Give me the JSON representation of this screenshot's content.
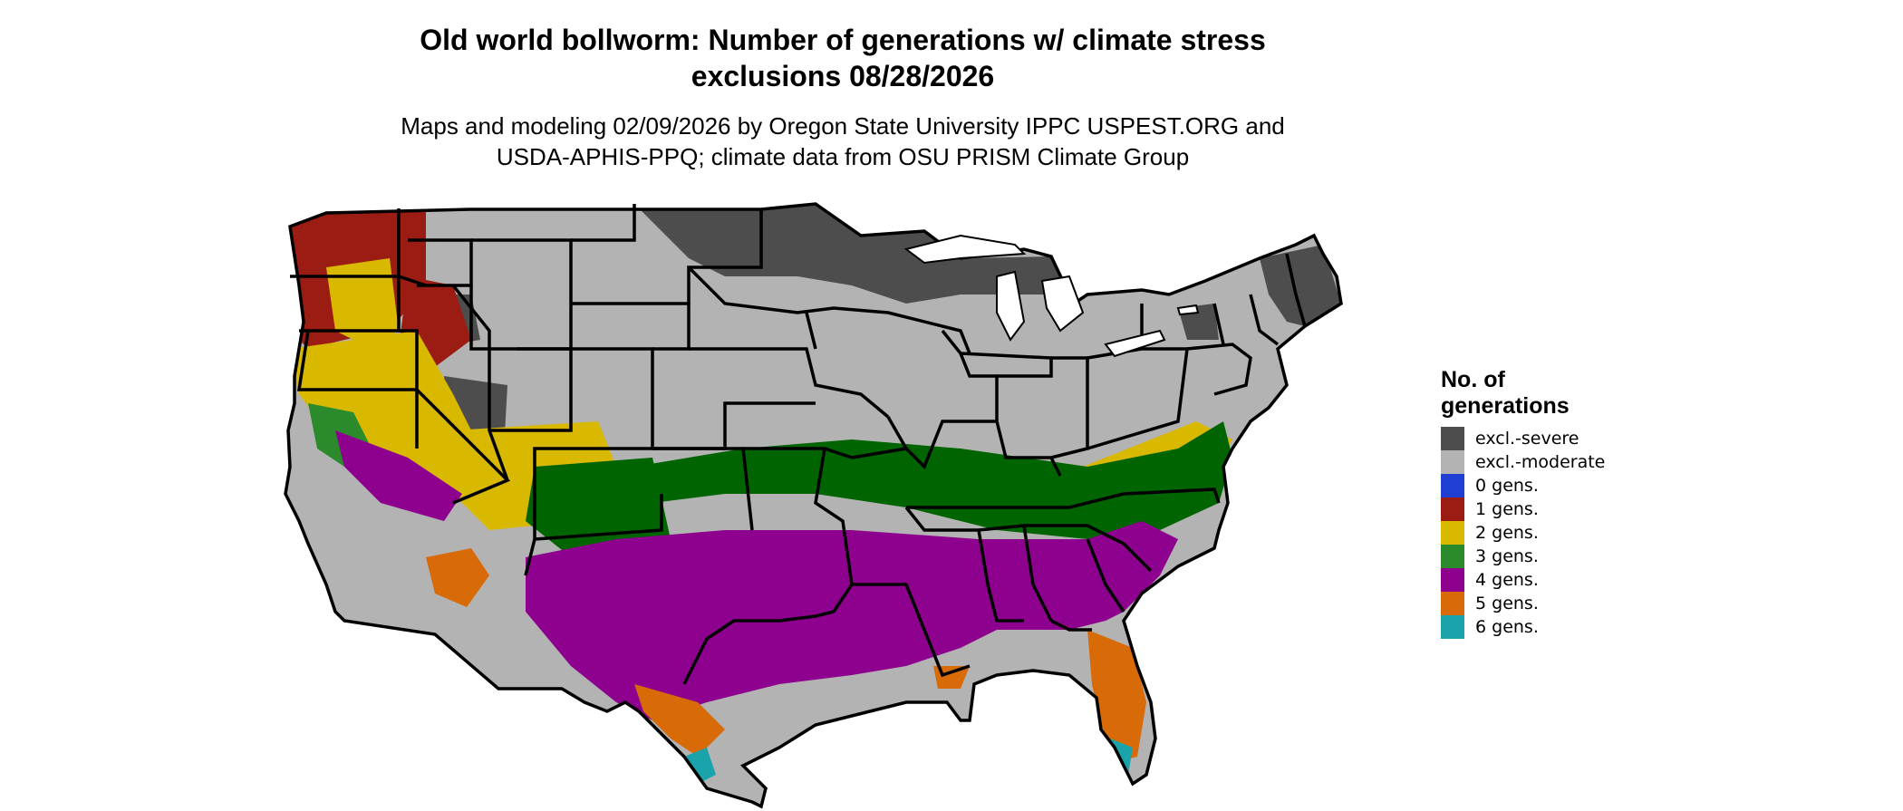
{
  "title_line1": "Old world bollworm: Number of generations w/ climate stress",
  "title_line2": "exclusions 08/28/2026",
  "subtitle_line1": "Maps and modeling 02/09/2026 by Oregon State University IPPC USPEST.ORG and",
  "subtitle_line2": "USDA-APHIS-PPQ; climate data from OSU PRISM Climate Group",
  "legend": {
    "title_line1": "No. of",
    "title_line2": "generations",
    "items": [
      {
        "label": "excl.-severe",
        "color": "#4d4d4d"
      },
      {
        "label": "excl.-moderate",
        "color": "#b3b3b3"
      },
      {
        "label": "0 gens.",
        "color": "#1f3fd4"
      },
      {
        "label": "1 gens.",
        "color": "#9a1c12"
      },
      {
        "label": "2 gens.",
        "color": "#d9b800"
      },
      {
        "label": "3 gens.",
        "color": "#2b8a2b"
      },
      {
        "label": "4 gens.",
        "color": "#8e008e"
      },
      {
        "label": "5 gens.",
        "color": "#d86a08"
      },
      {
        "label": "6 gens.",
        "color": "#1aa3aa"
      }
    ]
  },
  "map_colors": {
    "excl_severe": "#4d4d4d",
    "excl_moderate": "#b3b3b3",
    "gen0": "#1f3fd4",
    "gen1": "#9a1c12",
    "gen2": "#d9b800",
    "gen3": "#2b8a2b",
    "gen3_dark": "#006400",
    "gen3_light": "#7fd97f",
    "gen4": "#8e008e",
    "gen4_light": "#e000e0",
    "gen5": "#d86a08",
    "gen6": "#1aa3aa",
    "border": "#000000"
  }
}
